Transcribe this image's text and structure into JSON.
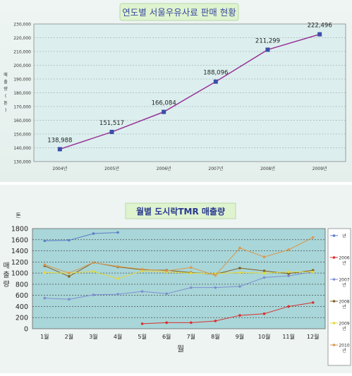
{
  "chart_data": [
    {
      "type": "line",
      "title": "연도별 서울우유사료 판매 현황",
      "ylabel": "매출량 (톤)",
      "ylabel_chars": [
        "매",
        "출",
        "량",
        "(",
        "톤",
        ")"
      ],
      "categories": [
        "2004년",
        "2005년",
        "2006년",
        "2007년",
        "2008년",
        "2009년"
      ],
      "values": [
        138988,
        151517,
        166084,
        188096,
        211299,
        222496
      ],
      "data_labels": [
        "138,988",
        "151,517",
        "166,084",
        "188,096",
        "211,299",
        "222,496"
      ],
      "yticks": [
        "130,000",
        "140,000",
        "150,000",
        "160,000",
        "170,000",
        "180,000",
        "190,000",
        "200,000",
        "210,000",
        "220,000",
        "230,000"
      ],
      "ylim": [
        130000,
        230000
      ],
      "grid": true,
      "colors": {
        "line": "#993399",
        "marker": "#3a4fa8",
        "plot_bg": "#dcefee"
      }
    },
    {
      "type": "line",
      "title": "월별 도시락TMR 매출량",
      "unit": "톤",
      "ylabel_chars": [
        "매",
        "출",
        "량"
      ],
      "xlabel": "월",
      "categories": [
        "1월",
        "2월",
        "3월",
        "4월",
        "5월",
        "6월",
        "7월",
        "8월",
        "9월",
        "10월",
        "11월",
        "12월"
      ],
      "yticks": [
        "0",
        "200",
        "400",
        "600",
        "800",
        "1000",
        "1200",
        "1400",
        "1600",
        "1800"
      ],
      "ylim": [
        0,
        1800
      ],
      "grid": true,
      "legend_position": "right",
      "series": [
        {
          "name": "년",
          "color": "#5a7fc8",
          "values": [
            1580,
            1590,
            1710,
            1730,
            null,
            null,
            null,
            null,
            null,
            null,
            null,
            null
          ]
        },
        {
          "name": "2006년",
          "color": "#d83030",
          "values": [
            null,
            null,
            null,
            null,
            90,
            110,
            110,
            140,
            240,
            270,
            400,
            470
          ]
        },
        {
          "name": "2007년",
          "color": "#7f8fd0",
          "values": [
            550,
            530,
            610,
            620,
            670,
            630,
            740,
            740,
            760,
            920,
            950,
            1020
          ]
        },
        {
          "name": "2008년",
          "color": "#806020",
          "values": [
            1130,
            940,
            1190,
            1110,
            1060,
            1050,
            1010,
            980,
            1090,
            1040,
            990,
            1050
          ]
        },
        {
          "name": "2009년",
          "color": "#e6d83a",
          "values": [
            1010,
            1000,
            1030,
            900,
            1040,
            1020,
            1000,
            990,
            1010,
            1000,
            1020,
            1020
          ]
        },
        {
          "name": "2010년",
          "color": "#d89a50",
          "values": [
            1150,
            1000,
            1190,
            1120,
            1070,
            1040,
            1100,
            960,
            1450,
            1290,
            1420,
            1640
          ]
        }
      ]
    }
  ]
}
